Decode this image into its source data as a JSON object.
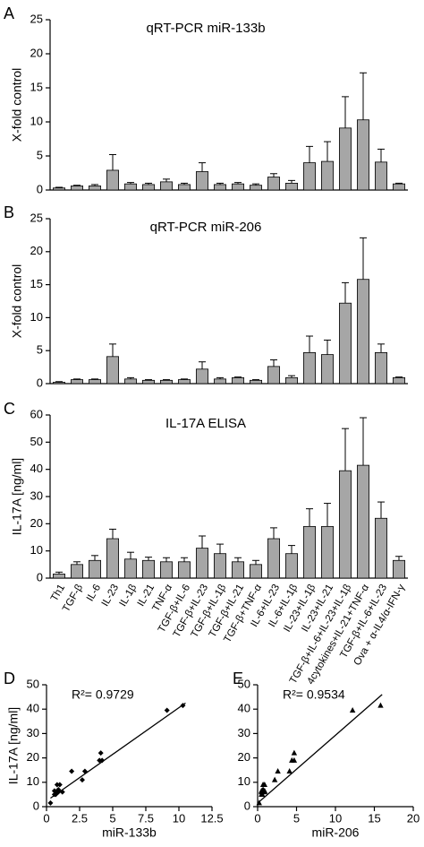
{
  "chart_data": [
    {
      "type": "bar",
      "letter": "A",
      "title": "qRT-PCR miR-133b",
      "ylabel": "X-fold control",
      "color": "#a6a6a6",
      "values": [
        0.3,
        0.6,
        0.6,
        2.9,
        0.9,
        0.8,
        1.2,
        0.8,
        2.7,
        0.8,
        0.9,
        0.7,
        1.9,
        1.0,
        4.0,
        4.2,
        9.1,
        10.3,
        4.1,
        0.9
      ],
      "errors": [
        0.1,
        0.1,
        0.2,
        2.3,
        0.2,
        0.2,
        0.4,
        0.2,
        1.3,
        0.2,
        0.2,
        0.2,
        0.5,
        0.4,
        2.4,
        2.9,
        4.6,
        6.9,
        1.9,
        0.1
      ],
      "ylim": [
        0,
        25
      ],
      "yticks": [
        0,
        5,
        10,
        15,
        20,
        25
      ]
    },
    {
      "type": "bar",
      "letter": "B",
      "title": "qRT-PCR miR-206",
      "ylabel": "X-fold control",
      "color": "#a6a6a6",
      "values": [
        0.2,
        0.6,
        0.6,
        4.1,
        0.7,
        0.5,
        0.5,
        0.6,
        2.2,
        0.7,
        0.9,
        0.5,
        2.6,
        0.9,
        4.7,
        4.4,
        12.2,
        15.8,
        4.7,
        0.9
      ],
      "errors": [
        0.1,
        0.1,
        0.1,
        1.9,
        0.2,
        0.1,
        0.1,
        0.1,
        1.1,
        0.2,
        0.1,
        0.1,
        1.0,
        0.3,
        2.5,
        2.2,
        3.1,
        6.3,
        1.3,
        0.1
      ],
      "ylim": [
        0,
        25
      ],
      "yticks": [
        0,
        5,
        10,
        15,
        20,
        25
      ]
    },
    {
      "type": "bar",
      "letter": "C",
      "title": "IL-17A ELISA",
      "ylabel": "IL-17A [ng/ml]",
      "color": "#a6a6a6",
      "categories": [
        "Th1",
        "TGF-β",
        "IL-6",
        "IL-23",
        "IL-1β",
        "IL-21",
        "TNF-α",
        "TGF-β+IL-6",
        "TGF-β+IL-23",
        "TGF-β+IL-1β",
        "TGF-β+IL-21",
        "TGF-β+TNF-α",
        "IL-6+IL-23",
        "IL-6+IL-1β",
        "IL-23+IL-1β",
        "IL-23+IL-21",
        "TGF-β+IL-6+IL-23+IL-1β",
        "4cytokines+IL-21+TNF-α",
        "TGF-β+IL-6+IL-23",
        "Ova + α-IL4/α-IFN-γ"
      ],
      "values": [
        1.5,
        5,
        6.5,
        14.5,
        7,
        6.5,
        6,
        6,
        11,
        9,
        6,
        5,
        14.5,
        9,
        19,
        19,
        39.5,
        41.5,
        22,
        6.5
      ],
      "errors": [
        0.7,
        1,
        1.8,
        3.5,
        2.5,
        1.2,
        1.5,
        1.5,
        4.5,
        3.5,
        1.5,
        1.5,
        4,
        3,
        6.5,
        8.5,
        15.5,
        17.5,
        6,
        1.5
      ],
      "ylim": [
        0,
        60
      ],
      "yticks": [
        0,
        10,
        20,
        30,
        40,
        50,
        60
      ]
    },
    {
      "type": "scatter",
      "letter": "D",
      "marker": "diamond",
      "xlabel": "miR-133b",
      "ylabel": "IL-17A [ng/ml]",
      "annotation": "R²= 0.9729",
      "x": [
        0.3,
        0.6,
        0.6,
        2.9,
        0.9,
        0.8,
        1.2,
        0.8,
        2.7,
        0.8,
        0.9,
        0.7,
        1.9,
        1.0,
        4.0,
        4.2,
        9.1,
        10.3,
        4.1,
        0.9
      ],
      "y": [
        1.5,
        5,
        6.5,
        14.5,
        7,
        6.5,
        6,
        6,
        11,
        9,
        6,
        5,
        14.5,
        9,
        19,
        19,
        39.5,
        41.5,
        22,
        6.5
      ],
      "fit": {
        "x": [
          0.3,
          10.5
        ],
        "y": [
          3.5,
          42.5
        ]
      },
      "xlim": [
        0,
        12.5
      ],
      "xticks": [
        0,
        2.5,
        5,
        7.5,
        10,
        12.5
      ],
      "ylim": [
        0,
        50
      ],
      "yticks": [
        0,
        10,
        20,
        30,
        40,
        50
      ]
    },
    {
      "type": "scatter",
      "letter": "E",
      "marker": "triangle",
      "xlabel": "miR-206",
      "annotation": "R²= 0.9534",
      "x": [
        0.2,
        0.6,
        0.6,
        4.1,
        0.7,
        0.5,
        0.5,
        0.6,
        2.2,
        0.7,
        0.9,
        0.5,
        2.6,
        0.9,
        4.7,
        4.4,
        12.2,
        15.8,
        4.7,
        0.9
      ],
      "y": [
        1.5,
        5,
        6.5,
        14.5,
        7,
        6.5,
        6,
        6,
        11,
        9,
        6,
        5,
        14.5,
        9,
        19,
        19,
        39.5,
        41.5,
        22,
        6.5
      ],
      "fit": {
        "x": [
          0.2,
          16
        ],
        "y": [
          2,
          46
        ]
      },
      "xlim": [
        0,
        20
      ],
      "xticks": [
        0,
        5,
        10,
        15,
        20
      ],
      "ylim": [
        0,
        50
      ],
      "yticks": [
        0,
        10,
        20,
        30,
        40,
        50
      ]
    }
  ]
}
